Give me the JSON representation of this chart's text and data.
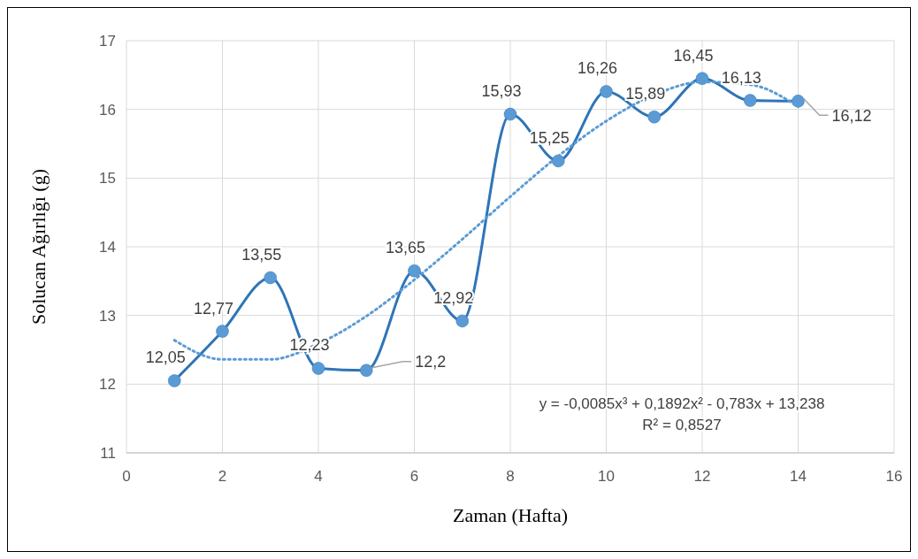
{
  "chart_data": {
    "type": "line",
    "xlabel": "Zaman (Hafta)",
    "ylabel": "Solucan Ağırlığı (g)",
    "x": [
      1,
      2,
      3,
      4,
      5,
      6,
      7,
      8,
      9,
      10,
      11,
      12,
      13,
      14
    ],
    "series": [
      {
        "color": "#2e75b6",
        "values": [
          12.05,
          12.77,
          13.55,
          12.23,
          12.2,
          13.65,
          12.92,
          15.93,
          15.25,
          16.26,
          15.89,
          16.45,
          16.13,
          16.12
        ],
        "value_labels": [
          "12,05",
          "12,77",
          "13,55",
          "12,23",
          "12,2",
          "13,65",
          "12,92",
          "15,93",
          "15,25",
          "16,26",
          "15,89",
          "16,45",
          "16,13",
          "16,12"
        ],
        "marker": "circle",
        "line_style": "solid"
      },
      {
        "type": "line",
        "color": "#5b9bd5",
        "x": [
          1,
          2,
          3,
          4,
          5,
          6,
          7,
          8,
          9,
          10,
          11,
          12,
          13,
          14
        ],
        "values": [
          12.64,
          12.36,
          12.36,
          12.59,
          12.99,
          13.52,
          14.11,
          14.73,
          15.32,
          15.83,
          16.21,
          16.4,
          16.36,
          16.04
        ],
        "marker": "none",
        "line_style": "dotted"
      }
    ],
    "annotations": [
      "y = -0,0085x³ + 0,1892x² - 0,783x + 13,238",
      "R² = 0,8527"
    ],
    "xlim": [
      0,
      16
    ],
    "xticks": [
      0,
      2,
      4,
      6,
      8,
      10,
      12,
      14,
      16
    ],
    "ylim": [
      11,
      17
    ],
    "yticks": [
      11,
      12,
      13,
      14,
      15,
      16,
      17
    ],
    "grid": true
  }
}
